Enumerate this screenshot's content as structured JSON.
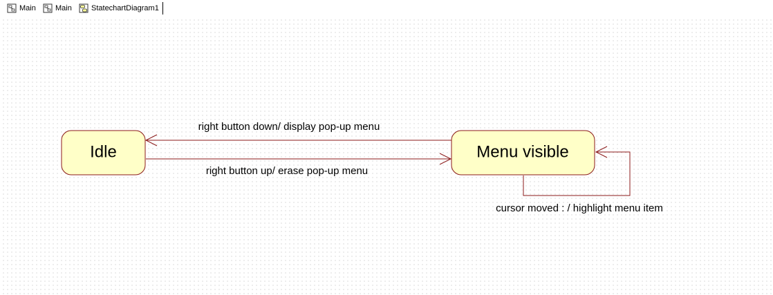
{
  "tabs": [
    {
      "label": "Main",
      "icon": "class-diagram-icon"
    },
    {
      "label": "Main",
      "icon": "class-diagram-icon"
    },
    {
      "label": "StatechartDiagram1",
      "icon": "statechart-diagram-icon"
    }
  ],
  "diagram": {
    "states": [
      {
        "name": "Idle"
      },
      {
        "name": "Menu visible"
      }
    ],
    "transitions": [
      {
        "label": "right button down/ display pop-up menu",
        "from": "Menu visible",
        "to": "Idle"
      },
      {
        "label": "right button up/ erase pop-up menu",
        "from": "Idle",
        "to": "Menu visible"
      },
      {
        "label": "cursor moved : / highlight menu item",
        "from": "Menu visible",
        "to": "Menu visible"
      }
    ]
  },
  "colors": {
    "state_fill": "#ffffc8",
    "state_border": "#8b1a1a",
    "transition_line": "#8b1a1a"
  }
}
